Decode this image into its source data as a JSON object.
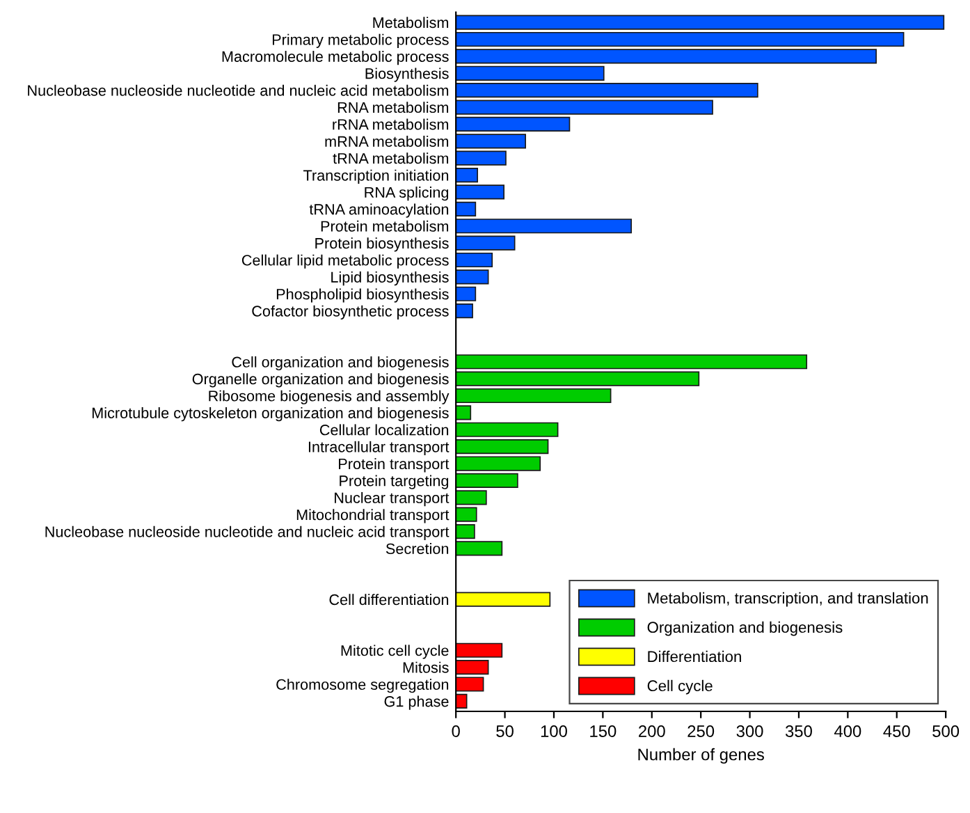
{
  "chart_data": {
    "type": "bar",
    "orientation": "horizontal",
    "xlabel": "Number of genes",
    "xlim": [
      0,
      500
    ],
    "xticks": [
      0,
      50,
      100,
      150,
      200,
      250,
      300,
      350,
      400,
      450,
      500
    ],
    "grid": false,
    "legend": "bottom right",
    "categories": [
      "Metabolism",
      "Primary metabolic process",
      "Macromolecule metabolic process",
      "Biosynthesis",
      "Nucleobase nucleoside nucleotide and nucleic acid metabolism",
      "RNA metabolism",
      "rRNA metabolism",
      "mRNA metabolism",
      "tRNA metabolism",
      "Transcription initiation",
      "RNA splicing",
      "tRNA aminoacylation",
      "Protein metabolism",
      "Protein biosynthesis",
      "Cellular lipid metabolic process",
      "Lipid biosynthesis",
      "Phospholipid biosynthesis",
      "Cofactor biosynthetic process",
      null,
      null,
      "Cell organization and biogenesis",
      "Organelle organization and biogenesis",
      "Ribosome biogenesis and assembly",
      "Microtubule cytoskeleton organization and biogenesis",
      "Cellular localization",
      "Intracellular transport",
      "Protein transport",
      "Protein targeting",
      "Nuclear transport",
      "Mitochondrial transport",
      "Nucleobase nucleoside nucleotide and nucleic acid transport",
      "Secretion",
      null,
      null,
      "Cell differentiation",
      null,
      null,
      "Mitotic cell cycle",
      "Mitosis",
      "Chromosome segregation",
      "G1 phase"
    ],
    "series": [
      {
        "name": "Metabolism, transcription, and translation",
        "color": "#0055ff",
        "values": [
          498,
          457,
          429,
          151,
          308,
          262,
          116,
          71,
          51,
          22,
          49,
          20,
          179,
          60,
          37,
          33,
          20,
          17,
          null,
          null,
          null,
          null,
          null,
          null,
          null,
          null,
          null,
          null,
          null,
          null,
          null,
          null,
          null,
          null,
          null,
          null,
          null,
          null,
          null,
          null,
          null
        ]
      },
      {
        "name": "Organization and biogenesis",
        "color": "#00cc00",
        "values": [
          null,
          null,
          null,
          null,
          null,
          null,
          null,
          null,
          null,
          null,
          null,
          null,
          null,
          null,
          null,
          null,
          null,
          null,
          null,
          null,
          358,
          248,
          158,
          15,
          104,
          94,
          86,
          63,
          31,
          21,
          19,
          47,
          null,
          null,
          null,
          null,
          null,
          null,
          null,
          null,
          null
        ]
      },
      {
        "name": "Differentiation",
        "color": "#ffff00",
        "values": [
          null,
          null,
          null,
          null,
          null,
          null,
          null,
          null,
          null,
          null,
          null,
          null,
          null,
          null,
          null,
          null,
          null,
          null,
          null,
          null,
          null,
          null,
          null,
          null,
          null,
          null,
          null,
          null,
          null,
          null,
          null,
          null,
          null,
          null,
          96,
          null,
          null,
          null,
          null,
          null,
          null
        ]
      },
      {
        "name": "Cell cycle",
        "color": "#ff0000",
        "values": [
          null,
          null,
          null,
          null,
          null,
          null,
          null,
          null,
          null,
          null,
          null,
          null,
          null,
          null,
          null,
          null,
          null,
          null,
          null,
          null,
          null,
          null,
          null,
          null,
          null,
          null,
          null,
          null,
          null,
          null,
          null,
          null,
          null,
          null,
          null,
          null,
          null,
          47,
          33,
          28,
          11
        ]
      }
    ]
  }
}
